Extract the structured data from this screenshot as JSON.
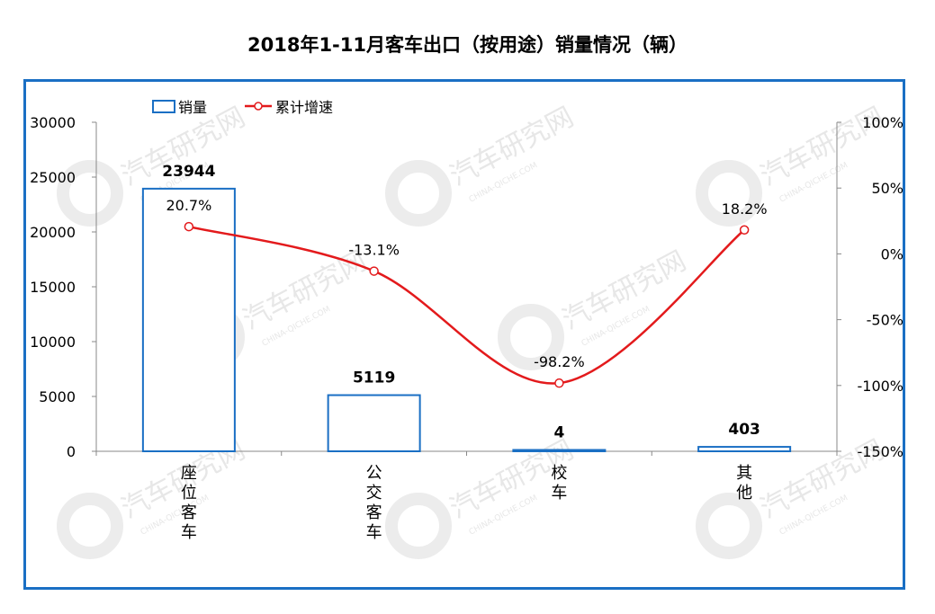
{
  "title": "2018年1-11月客车出口（按用途）销量情况（辆）",
  "watermark": {
    "text": "汽车研究网",
    "subtext": "CHINA-QICHE.COM"
  },
  "chart_data": {
    "type": "bar",
    "categories": [
      "座位客车",
      "公交客车",
      "校车",
      "其他"
    ],
    "series": [
      {
        "name": "销量",
        "type": "bar",
        "axis": "left",
        "values": [
          23944,
          5119,
          4,
          403
        ],
        "labels": [
          "23944",
          "5119",
          "4",
          "403"
        ],
        "color": "#1a6fc4"
      },
      {
        "name": "累计增速",
        "type": "line",
        "axis": "right",
        "values": [
          20.7,
          -13.1,
          -98.2,
          18.2
        ],
        "labels": [
          "20.7%",
          "-13.1%",
          "-98.2%",
          "18.2%"
        ],
        "color": "#e31a1c"
      }
    ],
    "y_left": {
      "min": 0,
      "max": 30000,
      "ticks": [
        "30000",
        "25000",
        "20000",
        "15000",
        "10000",
        "5000",
        "0"
      ]
    },
    "y_right": {
      "min": -150,
      "max": 100,
      "ticks": [
        "100%",
        "50%",
        "0%",
        "-50%",
        "-100%",
        "-150%"
      ]
    },
    "legend_position": "top-left",
    "grid": false
  }
}
